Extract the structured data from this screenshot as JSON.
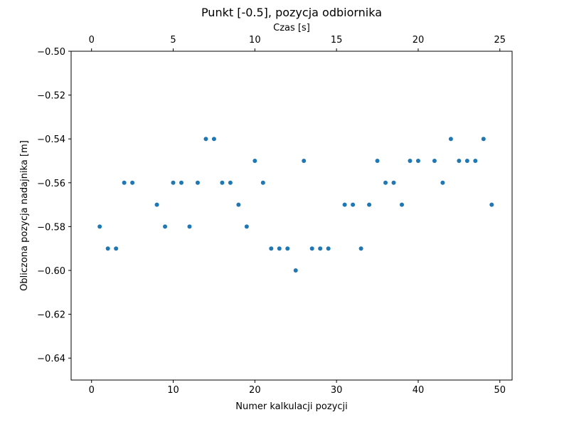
{
  "chart_data": {
    "type": "scatter",
    "title": "Punkt [-0.5], pozycja odbiornika",
    "xlabel": "Numer kalkulacji pozycji",
    "ylabel": "Obliczona pozycja nadajnika [m]",
    "x2label": "Czas [s]",
    "xlim": [
      -2.5,
      51.5
    ],
    "ylim": [
      -0.65,
      -0.5
    ],
    "x2lim": [
      -1.25,
      25.75
    ],
    "xticks": [
      0,
      10,
      20,
      30,
      40,
      50
    ],
    "xtick_labels": [
      "0",
      "10",
      "20",
      "30",
      "40",
      "50"
    ],
    "x2ticks": [
      0,
      5,
      10,
      15,
      20,
      25
    ],
    "x2tick_labels": [
      "0",
      "5",
      "10",
      "15",
      "20",
      "25"
    ],
    "yticks": [
      -0.5,
      -0.52,
      -0.54,
      -0.56,
      -0.58,
      -0.6,
      -0.62,
      -0.64
    ],
    "ytick_labels": [
      "−0.50",
      "−0.52",
      "−0.54",
      "−0.56",
      "−0.58",
      "−0.60",
      "−0.62",
      "−0.64"
    ],
    "grid": false,
    "marker_color": "#1f77b4",
    "points": [
      {
        "x": 1,
        "y": -0.58
      },
      {
        "x": 2,
        "y": -0.59
      },
      {
        "x": 3,
        "y": -0.59
      },
      {
        "x": 4,
        "y": -0.56
      },
      {
        "x": 5,
        "y": -0.56
      },
      {
        "x": 8,
        "y": -0.57
      },
      {
        "x": 9,
        "y": -0.58
      },
      {
        "x": 10,
        "y": -0.56
      },
      {
        "x": 11,
        "y": -0.56
      },
      {
        "x": 12,
        "y": -0.58
      },
      {
        "x": 13,
        "y": -0.56
      },
      {
        "x": 14,
        "y": -0.54
      },
      {
        "x": 15,
        "y": -0.54
      },
      {
        "x": 16,
        "y": -0.56
      },
      {
        "x": 17,
        "y": -0.56
      },
      {
        "x": 18,
        "y": -0.57
      },
      {
        "x": 19,
        "y": -0.58
      },
      {
        "x": 20,
        "y": -0.55
      },
      {
        "x": 21,
        "y": -0.56
      },
      {
        "x": 22,
        "y": -0.59
      },
      {
        "x": 23,
        "y": -0.59
      },
      {
        "x": 24,
        "y": -0.59
      },
      {
        "x": 25,
        "y": -0.6
      },
      {
        "x": 26,
        "y": -0.55
      },
      {
        "x": 27,
        "y": -0.59
      },
      {
        "x": 28,
        "y": -0.59
      },
      {
        "x": 29,
        "y": -0.59
      },
      {
        "x": 31,
        "y": -0.57
      },
      {
        "x": 32,
        "y": -0.57
      },
      {
        "x": 33,
        "y": -0.59
      },
      {
        "x": 34,
        "y": -0.57
      },
      {
        "x": 35,
        "y": -0.55
      },
      {
        "x": 36,
        "y": -0.56
      },
      {
        "x": 37,
        "y": -0.56
      },
      {
        "x": 38,
        "y": -0.57
      },
      {
        "x": 39,
        "y": -0.55
      },
      {
        "x": 40,
        "y": -0.55
      },
      {
        "x": 42,
        "y": -0.55
      },
      {
        "x": 43,
        "y": -0.56
      },
      {
        "x": 44,
        "y": -0.54
      },
      {
        "x": 45,
        "y": -0.55
      },
      {
        "x": 46,
        "y": -0.55
      },
      {
        "x": 47,
        "y": -0.55
      },
      {
        "x": 48,
        "y": -0.54
      },
      {
        "x": 49,
        "y": -0.57
      }
    ]
  }
}
